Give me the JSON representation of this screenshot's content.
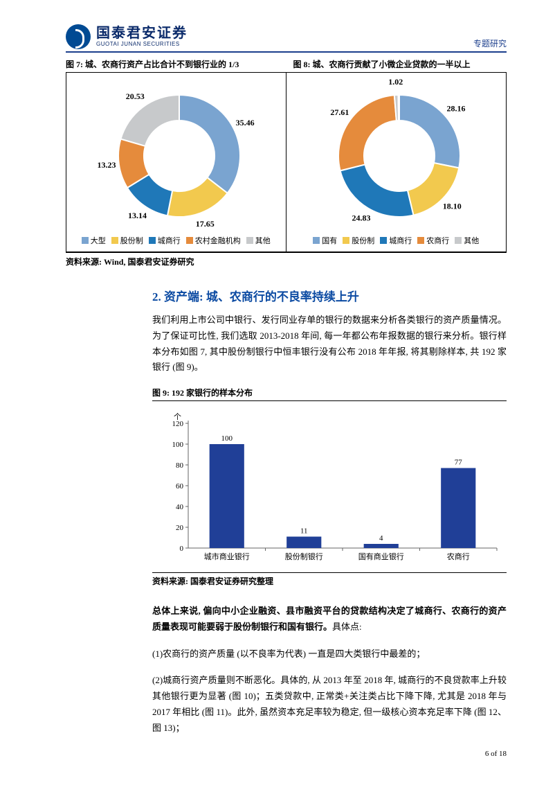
{
  "header": {
    "logo_cn": "国泰君安证券",
    "logo_en": "GUOTAI JUNAN SECURITIES",
    "right_label": "专题研究"
  },
  "fig7": {
    "title": "图 7:  城、农商行资产占比合计不到银行业的 1/3",
    "type": "donut",
    "slices": [
      {
        "label": "大型",
        "value": 35.46,
        "color": "#7aa4d0"
      },
      {
        "label": "股份制",
        "value": 17.65,
        "color": "#f2c94e"
      },
      {
        "label": "城商行",
        "value": 13.14,
        "color": "#1f78b8"
      },
      {
        "label": "农村金融机构",
        "value": 13.23,
        "color": "#e58b3c"
      },
      {
        "label": "其他",
        "value": 20.53,
        "color": "#c7c9cb"
      }
    ],
    "ring_inner_ratio": 0.58,
    "background_color": "#ffffff",
    "label_fontsize": 12,
    "label_color": "#000000",
    "border_color": "#ffffff",
    "border_width": 2
  },
  "fig8": {
    "title": "图 8:  城、农商行贡献了小微企业贷款的一半以上",
    "type": "donut",
    "slices": [
      {
        "label": "国有",
        "value": 28.16,
        "color": "#7aa4d0"
      },
      {
        "label": "股份制",
        "value": 18.1,
        "color": "#f2c94e"
      },
      {
        "label": "城商行",
        "value": 24.83,
        "color": "#1f78b8"
      },
      {
        "label": "农商行",
        "value": 27.61,
        "color": "#e58b3c"
      },
      {
        "label": "其他",
        "value": 1.02,
        "color": "#c7c9cb"
      },
      {
        "label": "gap",
        "value": 0.28,
        "color": "#ffffff",
        "hide_legend": true,
        "hide_label": true
      }
    ],
    "ring_inner_ratio": 0.58,
    "background_color": "#ffffff",
    "label_fontsize": 12,
    "label_color": "#000000",
    "border_color": "#ffffff",
    "border_width": 2
  },
  "source1": "资料来源:  Wind, 国泰君安证券研究",
  "section": {
    "heading": "2.  资产端: 城、农商行的不良率持续上升",
    "para1": "我们利用上市公司中银行、发行同业存单的银行的数据来分析各类银行的资产质量情况。为了保证可比性, 我们选取 2013-2018 年间, 每一年都公布年报数据的银行来分析。银行样本分布如图 7, 其中股份制银行中恒丰银行没有公布 2018 年年报, 将其剔除样本, 共 192 家银行 (图 9)。"
  },
  "fig9": {
    "title_prefix": "图 9:  ",
    "title_text": "192 家银行的样本分布",
    "type": "bar",
    "categories": [
      "城市商业银行",
      "股份制银行",
      "国有商业银行",
      "农商行"
    ],
    "values": [
      100,
      11,
      4,
      77
    ],
    "bar_color": "#203f97",
    "bar_width": 0.45,
    "ylim": [
      0,
      120
    ],
    "ytick_step": 20,
    "y_unit_label": "个",
    "axis_color": "#666666",
    "grid": false,
    "label_fontsize": 11,
    "value_fontsize": 11,
    "background_color": "#ffffff"
  },
  "source2": "资料来源: 国泰君安证券研究整理",
  "body2": {
    "lead_bold": "总体上来说, 偏向中小企业融资、县市融资平台的贷款结构决定了城商行、农商行的资产质量表现可能要弱于股份制银行和国有银行。",
    "lead_tail": "具体点:",
    "p1": "(1)农商行的资产质量 (以不良率为代表) 一直是四大类银行中最差的；",
    "p2": "(2)城商行资产质量则不断恶化。具体的, 从 2013 年至 2018 年, 城商行的不良贷款率上升较其他银行更为显著 (图 10)；五类贷款中, 正常类+关注类占比下降下降, 尤其是 2018 年与 2017 年相比 (图 11)。此外, 虽然资本充足率较为稳定, 但一级核心资本充足率下降 (图 12、图 13)；"
  },
  "footer": "6 of 18"
}
